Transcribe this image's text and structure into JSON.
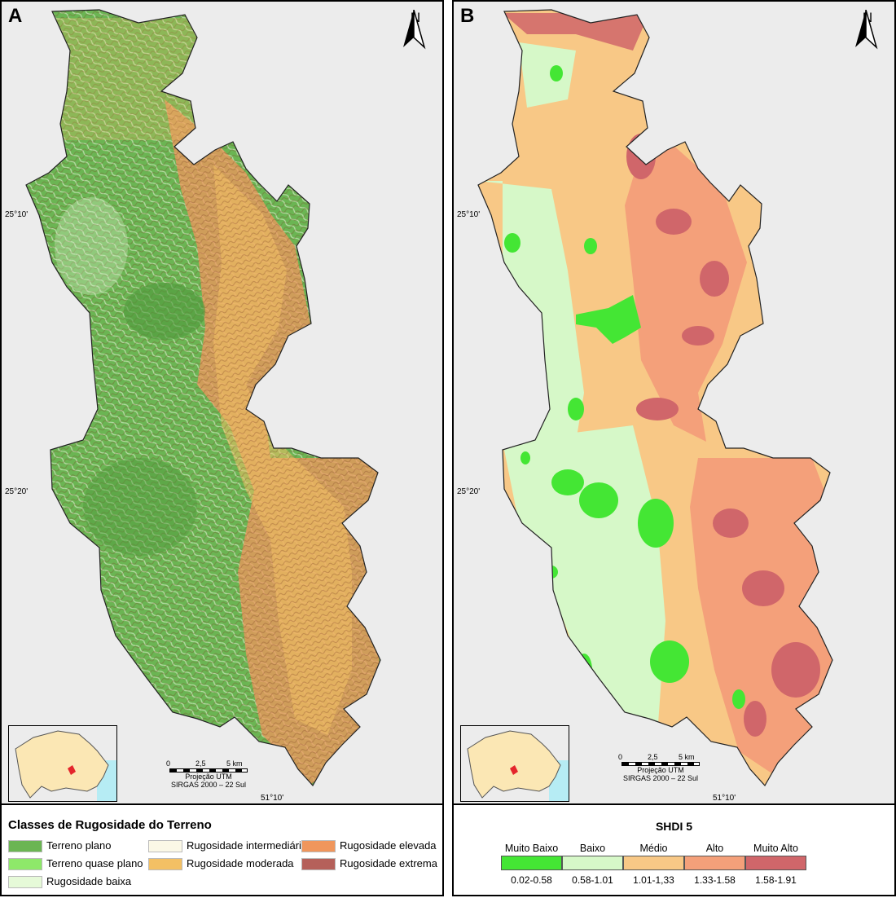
{
  "panels": {
    "a": {
      "letter": "A",
      "north": "N",
      "lat_top": "25°10'",
      "lat_bottom": "25°20'",
      "lon": "51°10'",
      "scale": {
        "t0": "0",
        "t1": "2,5",
        "t2": "5 km",
        "proj": "Projeção UTM",
        "datum": "SIRGAS 2000 – 22 Sul"
      },
      "legend": {
        "title": "Classes de Rugosidade do Terreno",
        "items": [
          {
            "label": "Terreno plano",
            "color": "#6bb553"
          },
          {
            "label": "Terreno quase plano",
            "color": "#8ee86a"
          },
          {
            "label": "Rugosidade baixa",
            "color": "#e6fad8"
          },
          {
            "label": "Rugosidade intermediária",
            "color": "#fbf8e6"
          },
          {
            "label": "Rugosidade moderada",
            "color": "#f3c064"
          },
          {
            "label": "Rugosidade elevada",
            "color": "#f0965c"
          },
          {
            "label": "Rugosidade extrema",
            "color": "#b5605a"
          }
        ]
      }
    },
    "b": {
      "letter": "B",
      "north": "N",
      "lat_top": "25°10'",
      "lat_bottom": "25°20'",
      "lon": "51°10'",
      "scale": {
        "t0": "0",
        "t1": "2,5",
        "t2": "5 km",
        "proj": "Projeção UTM",
        "datum": "SIRGAS 2000 – 22 Sul"
      },
      "legend": {
        "title": "SHDI 5",
        "classes": [
          {
            "label": "Muito Baixo",
            "range": "0.02-0.58",
            "color": "#44e634"
          },
          {
            "label": "Baixo",
            "range": "0.58-1.01",
            "color": "#d6f8c8"
          },
          {
            "label": "Médio",
            "range": "1.01-1,33",
            "color": "#f8c886"
          },
          {
            "label": "Alto",
            "range": "1.33-1.58",
            "color": "#f4a07a"
          },
          {
            "label": "Muito Alto",
            "range": "1.58-1.91",
            "color": "#d0666a"
          }
        ]
      }
    }
  },
  "colors": {
    "inset_state": "#fbe7b4",
    "inset_ocean": "#b6ecf4",
    "inset_highlight": "#e4252c"
  }
}
